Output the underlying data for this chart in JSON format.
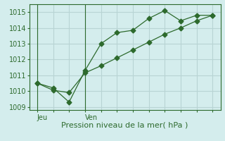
{
  "line1_x": [
    0,
    1,
    2,
    3,
    4,
    5,
    6,
    7,
    8,
    9,
    10,
    11
  ],
  "line1_y": [
    1010.5,
    1010.2,
    1009.3,
    1011.3,
    1013.0,
    1013.7,
    1013.85,
    1014.6,
    1015.1,
    1014.45,
    1014.8,
    1014.8
  ],
  "line2_x": [
    0,
    1,
    2,
    3,
    4,
    5,
    6,
    7,
    8,
    9,
    10,
    11
  ],
  "line2_y": [
    1010.5,
    1010.05,
    1009.9,
    1011.15,
    1011.6,
    1012.1,
    1012.6,
    1013.1,
    1013.6,
    1014.0,
    1014.45,
    1014.8
  ],
  "line_color": "#2d6a2d",
  "bg_color": "#d4eded",
  "grid_color": "#b8d4d4",
  "xlabel": "Pression niveau de la mer( hPa )",
  "ylim": [
    1008.8,
    1015.5
  ],
  "yticks": [
    1009,
    1010,
    1011,
    1012,
    1013,
    1014,
    1015
  ],
  "xlim": [
    -0.5,
    11.5
  ],
  "xticks_minor": [
    0,
    1,
    2,
    3,
    4,
    5,
    6,
    7,
    8,
    9,
    10,
    11
  ],
  "jeu_x": 0,
  "ven_x": 3,
  "jeu_label": "Jeu",
  "ven_label": "Ven",
  "axis_fontsize": 8,
  "tick_fontsize": 7,
  "marker_size": 3.5
}
